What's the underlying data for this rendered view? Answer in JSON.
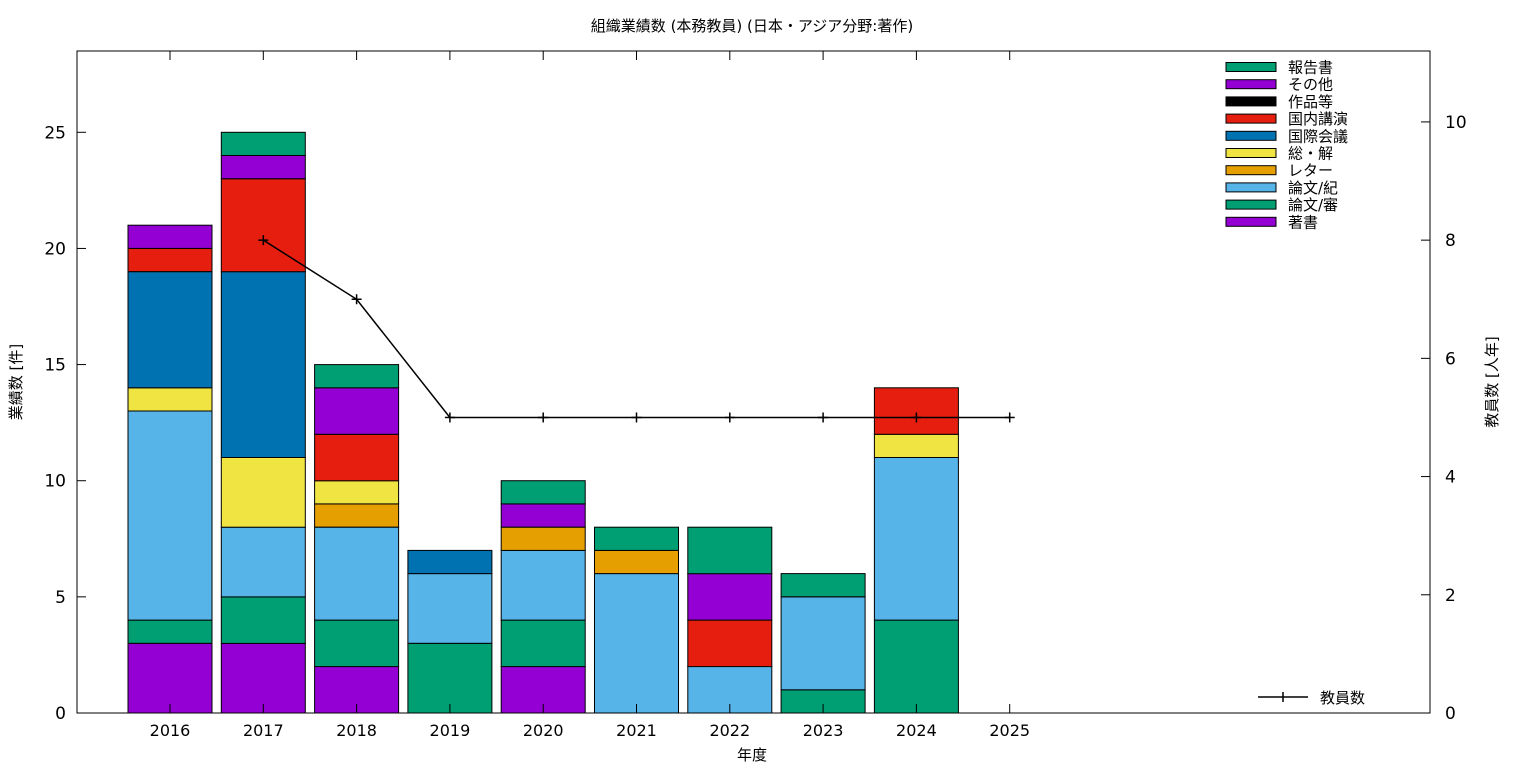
{
  "chart_data": {
    "type": "bar",
    "title": "組織業績数 (本務教員) (日本・アジア分野:著作)",
    "xlabel": "年度",
    "ylabel": "業績数 [件]",
    "y2label": "教員数 [人年]",
    "ylim": [
      0,
      28.5
    ],
    "y2lim": [
      0,
      11.2
    ],
    "yticks": [
      0,
      5,
      10,
      15,
      20,
      25
    ],
    "y2ticks": [
      0,
      2,
      4,
      6,
      8,
      10
    ],
    "categories": [
      "2016",
      "2017",
      "2018",
      "2019",
      "2020",
      "2021",
      "2022",
      "2023",
      "2024",
      "2025"
    ],
    "legend_position": "top-right",
    "series": [
      {
        "name": "著書",
        "color": "#9400d3",
        "values": [
          3,
          3,
          2,
          0,
          2,
          0,
          0,
          0,
          0,
          0
        ]
      },
      {
        "name": "論文/審",
        "color": "#009e73",
        "values": [
          1,
          2,
          2,
          3,
          2,
          0,
          0,
          1,
          4,
          0
        ]
      },
      {
        "name": "論文/紀",
        "color": "#56b4e9",
        "values": [
          9,
          3,
          4,
          3,
          3,
          6,
          2,
          4,
          7,
          0
        ]
      },
      {
        "name": "レター",
        "color": "#e69f00",
        "values": [
          0,
          0,
          1,
          0,
          1,
          1,
          0,
          0,
          0,
          0
        ]
      },
      {
        "name": "総・解",
        "color": "#f0e442",
        "values": [
          1,
          3,
          1,
          0,
          0,
          0,
          0,
          0,
          1,
          0
        ]
      },
      {
        "name": "国際会議",
        "color": "#0072b2",
        "values": [
          5,
          8,
          0,
          1,
          0,
          0,
          0,
          0,
          0,
          0
        ]
      },
      {
        "name": "国内講演",
        "color": "#e51e10",
        "values": [
          1,
          4,
          2,
          0,
          0,
          0,
          2,
          0,
          2,
          0
        ]
      },
      {
        "name": "作品等",
        "color": "#000000",
        "values": [
          0,
          0,
          0,
          0,
          0,
          0,
          0,
          0,
          0,
          0
        ]
      },
      {
        "name": "その他",
        "color": "#9400d3",
        "values": [
          1,
          1,
          2,
          0,
          1,
          0,
          2,
          0,
          0,
          0
        ]
      },
      {
        "name": "報告書",
        "color": "#009e73",
        "values": [
          0,
          1,
          1,
          0,
          1,
          1,
          2,
          1,
          0,
          0
        ]
      }
    ],
    "line": {
      "name": "教員数",
      "color": "#000000",
      "axis": "y2",
      "x": [
        "2017",
        "2018",
        "2019",
        "2020",
        "2021",
        "2022",
        "2023",
        "2024",
        "2025"
      ],
      "values": [
        8,
        7,
        5,
        5,
        5,
        5,
        5,
        5,
        5
      ]
    }
  }
}
